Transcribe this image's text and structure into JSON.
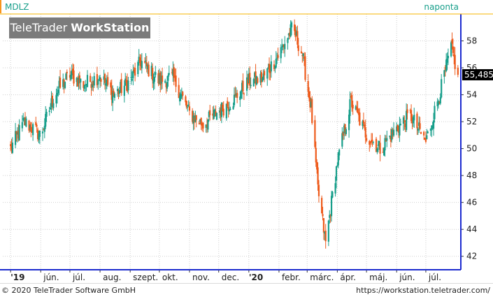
{
  "header": {
    "symbol": "MDLZ",
    "period": "naponta"
  },
  "logo": {
    "light": "TeleTrader ",
    "bold": "WorkStation"
  },
  "footer": {
    "copyright": "© 2020 TeleTrader Software GmbH",
    "url": "https://workstation.teletrader.com/"
  },
  "colors": {
    "up": "#179e8a",
    "down": "#ee5a1b",
    "axis": "#1c2bcf",
    "grid": "#cfcfcf",
    "label_bg": "#000000"
  },
  "chart_data": {
    "type": "candlestick",
    "ylim": [
      41,
      60
    ],
    "y_ticks": [
      42,
      44,
      46,
      48,
      50,
      52,
      54,
      56,
      58
    ],
    "x_tick_labels": [
      "'19",
      "jún.",
      "júl.",
      "aug.",
      "szept.",
      "okt.",
      "nov.",
      "dec.",
      "'20",
      "febr.",
      "márc.",
      "ápr.",
      "máj.",
      "jún.",
      "júl."
    ],
    "last_value_label": "55,485",
    "grid": true,
    "key_points": [
      {
        "date": "2019-05-01",
        "value": 50.0
      },
      {
        "date": "2019-05-15",
        "value": 52.0
      },
      {
        "date": "2019-06-01",
        "value": 51.0
      },
      {
        "date": "2019-06-15",
        "value": 54.0
      },
      {
        "date": "2019-07-01",
        "value": 55.5
      },
      {
        "date": "2019-07-15",
        "value": 54.8
      },
      {
        "date": "2019-08-01",
        "value": 55.4
      },
      {
        "date": "2019-08-15",
        "value": 54.0
      },
      {
        "date": "2019-09-01",
        "value": 55.0
      },
      {
        "date": "2019-09-12",
        "value": 56.5
      },
      {
        "date": "2019-10-01",
        "value": 55.0
      },
      {
        "date": "2019-10-15",
        "value": 55.3
      },
      {
        "date": "2019-11-01",
        "value": 52.6
      },
      {
        "date": "2019-11-15",
        "value": 51.8
      },
      {
        "date": "2019-12-01",
        "value": 52.8
      },
      {
        "date": "2019-12-15",
        "value": 53.5
      },
      {
        "date": "2020-01-01",
        "value": 55.0
      },
      {
        "date": "2020-01-15",
        "value": 55.2
      },
      {
        "date": "2020-02-01",
        "value": 57.0
      },
      {
        "date": "2020-02-15",
        "value": 59.0
      },
      {
        "date": "2020-02-25",
        "value": 57.0
      },
      {
        "date": "2020-03-05",
        "value": 53.0
      },
      {
        "date": "2020-03-12",
        "value": 47.0
      },
      {
        "date": "2020-03-20",
        "value": 43.0
      },
      {
        "date": "2020-04-01",
        "value": 49.0
      },
      {
        "date": "2020-04-15",
        "value": 53.5
      },
      {
        "date": "2020-05-01",
        "value": 51.0
      },
      {
        "date": "2020-05-15",
        "value": 50.0
      },
      {
        "date": "2020-06-01",
        "value": 51.5
      },
      {
        "date": "2020-06-15",
        "value": 52.5
      },
      {
        "date": "2020-07-01",
        "value": 50.5
      },
      {
        "date": "2020-07-15",
        "value": 54.0
      },
      {
        "date": "2020-07-27",
        "value": 57.5
      },
      {
        "date": "2020-08-03",
        "value": 55.485
      }
    ]
  }
}
